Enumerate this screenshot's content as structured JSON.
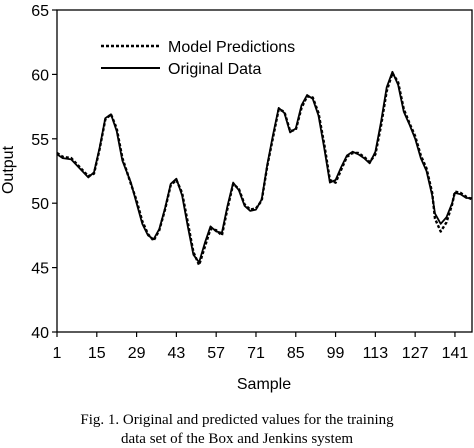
{
  "chart_data": {
    "type": "line",
    "xlabel": "Sample",
    "ylabel": "Output",
    "xlim": [
      1,
      147
    ],
    "ylim": [
      40,
      65
    ],
    "x_ticks": [
      1,
      15,
      29,
      43,
      57,
      71,
      85,
      99,
      113,
      127,
      141
    ],
    "y_ticks": [
      40,
      45,
      50,
      55,
      60,
      65
    ],
    "grid": false,
    "legend_position": "top-left inside",
    "series": [
      {
        "name": "Model Predictions",
        "style": "dashed",
        "color": "#000000",
        "points": [
          [
            1,
            53.9
          ],
          [
            3,
            53.6
          ],
          [
            6,
            53.5
          ],
          [
            9,
            52.8
          ],
          [
            12,
            52.1
          ],
          [
            14,
            52.3
          ],
          [
            16,
            54.2
          ],
          [
            18,
            56.5
          ],
          [
            20,
            56.9
          ],
          [
            22,
            55.8
          ],
          [
            24,
            53.5
          ],
          [
            27,
            51.5
          ],
          [
            29,
            50.2
          ],
          [
            31,
            48.6
          ],
          [
            33,
            47.6
          ],
          [
            35,
            47.1
          ],
          [
            37,
            47.9
          ],
          [
            39,
            49.5
          ],
          [
            41,
            51.4
          ],
          [
            43,
            51.8
          ],
          [
            45,
            50.8
          ],
          [
            47,
            48.5
          ],
          [
            49,
            46.2
          ],
          [
            51,
            45.2
          ],
          [
            53,
            46.6
          ],
          [
            55,
            48.0
          ],
          [
            57,
            47.9
          ],
          [
            59,
            47.5
          ],
          [
            61,
            49.6
          ],
          [
            63,
            51.5
          ],
          [
            65,
            51.1
          ],
          [
            67,
            49.9
          ],
          [
            69,
            49.5
          ],
          [
            71,
            49.6
          ],
          [
            73,
            50.2
          ],
          [
            75,
            52.9
          ],
          [
            77,
            55.1
          ],
          [
            79,
            57.3
          ],
          [
            81,
            57.1
          ],
          [
            83,
            55.6
          ],
          [
            85,
            55.7
          ],
          [
            87,
            57.4
          ],
          [
            89,
            58.3
          ],
          [
            91,
            58.2
          ],
          [
            93,
            57.0
          ],
          [
            95,
            54.6
          ],
          [
            97,
            51.8
          ],
          [
            99,
            51.6
          ],
          [
            101,
            52.6
          ],
          [
            103,
            53.6
          ],
          [
            105,
            53.9
          ],
          [
            107,
            53.9
          ],
          [
            109,
            53.6
          ],
          [
            111,
            53.2
          ],
          [
            113,
            53.8
          ],
          [
            115,
            56.0
          ],
          [
            117,
            58.7
          ],
          [
            119,
            60.1
          ],
          [
            121,
            59.4
          ],
          [
            123,
            57.3
          ],
          [
            125,
            56.2
          ],
          [
            127,
            55.2
          ],
          [
            129,
            53.7
          ],
          [
            131,
            52.7
          ],
          [
            133,
            50.8
          ],
          [
            134,
            48.8
          ],
          [
            136,
            47.8
          ],
          [
            138,
            48.5
          ],
          [
            140,
            49.9
          ],
          [
            141,
            50.9
          ],
          [
            143,
            50.8
          ],
          [
            145,
            50.5
          ],
          [
            147,
            50.3
          ]
        ]
      },
      {
        "name": "Original Data",
        "style": "solid",
        "color": "#000000",
        "points": [
          [
            1,
            53.8
          ],
          [
            3,
            53.5
          ],
          [
            6,
            53.4
          ],
          [
            9,
            52.7
          ],
          [
            12,
            52.0
          ],
          [
            14,
            52.4
          ],
          [
            16,
            54.3
          ],
          [
            18,
            56.6
          ],
          [
            20,
            56.9
          ],
          [
            22,
            55.6
          ],
          [
            24,
            53.3
          ],
          [
            27,
            51.6
          ],
          [
            29,
            50.0
          ],
          [
            31,
            48.4
          ],
          [
            33,
            47.5
          ],
          [
            35,
            47.2
          ],
          [
            37,
            48.0
          ],
          [
            39,
            49.6
          ],
          [
            41,
            51.5
          ],
          [
            43,
            51.9
          ],
          [
            45,
            50.6
          ],
          [
            47,
            48.2
          ],
          [
            49,
            46.0
          ],
          [
            51,
            45.4
          ],
          [
            53,
            46.9
          ],
          [
            55,
            48.2
          ],
          [
            57,
            47.8
          ],
          [
            59,
            47.7
          ],
          [
            61,
            49.8
          ],
          [
            63,
            51.6
          ],
          [
            65,
            51.0
          ],
          [
            67,
            49.8
          ],
          [
            69,
            49.4
          ],
          [
            71,
            49.5
          ],
          [
            73,
            50.3
          ],
          [
            75,
            53.0
          ],
          [
            77,
            55.3
          ],
          [
            79,
            57.4
          ],
          [
            81,
            57.0
          ],
          [
            83,
            55.5
          ],
          [
            85,
            55.8
          ],
          [
            87,
            57.6
          ],
          [
            89,
            58.4
          ],
          [
            91,
            58.1
          ],
          [
            93,
            56.8
          ],
          [
            95,
            54.3
          ],
          [
            97,
            51.6
          ],
          [
            99,
            51.8
          ],
          [
            101,
            52.8
          ],
          [
            103,
            53.7
          ],
          [
            105,
            54.0
          ],
          [
            107,
            53.8
          ],
          [
            109,
            53.5
          ],
          [
            111,
            53.1
          ],
          [
            113,
            54.0
          ],
          [
            115,
            56.3
          ],
          [
            117,
            59.0
          ],
          [
            119,
            60.2
          ],
          [
            121,
            59.2
          ],
          [
            123,
            57.1
          ],
          [
            125,
            56.1
          ],
          [
            127,
            55.0
          ],
          [
            129,
            53.5
          ],
          [
            131,
            52.5
          ],
          [
            133,
            50.6
          ],
          [
            134,
            49.2
          ],
          [
            136,
            48.4
          ],
          [
            138,
            48.9
          ],
          [
            140,
            50.0
          ],
          [
            141,
            50.8
          ],
          [
            143,
            50.7
          ],
          [
            145,
            50.4
          ],
          [
            147,
            50.4
          ]
        ]
      }
    ]
  },
  "caption": {
    "line1": "Fig. 1. Original and predicted values for the training",
    "line2": "data set of the  Box and Jenkins system"
  }
}
